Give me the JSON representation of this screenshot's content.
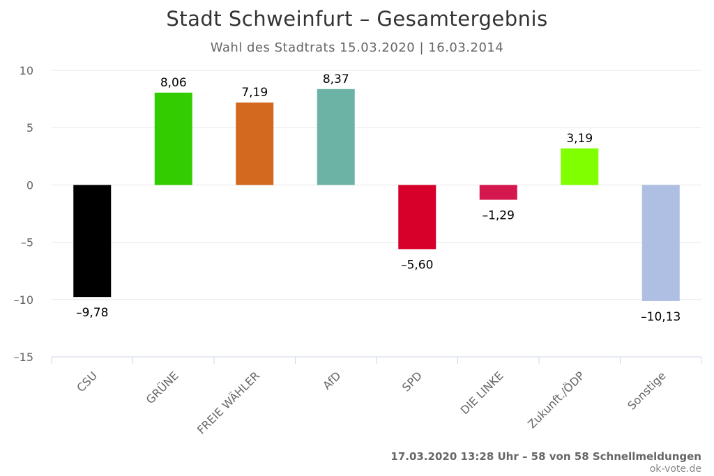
{
  "chart_data": {
    "type": "bar",
    "title": "Stadt Schweinfurt – Gesamtergebnis",
    "subtitle": "Wahl des Stadtrats 15.03.2020 | 16.03.2014",
    "categories": [
      "CSU",
      "GRÜNE",
      "FREIE WÄHLER",
      "AfD",
      "SPD",
      "DIE LINKE",
      "Zukunft./ÖDP",
      "Sonstige"
    ],
    "values": [
      -9.78,
      8.06,
      7.19,
      8.37,
      -5.6,
      -1.29,
      3.19,
      -10.13
    ],
    "data_labels": [
      "–9,78",
      "8,06",
      "7,19",
      "8,37",
      "–5,60",
      "–1,29",
      "3,19",
      "–10,13"
    ],
    "colors": [
      "#000000",
      "#33cc00",
      "#d2691e",
      "#6db3a5",
      "#d6002a",
      "#d4174d",
      "#80ff00",
      "#aebfe3"
    ],
    "ylim": [
      -15,
      10
    ],
    "y_ticks": [
      10,
      5,
      0,
      -5,
      -10,
      -15
    ],
    "y_tick_labels": [
      "10",
      "5",
      "0",
      "–5",
      "–10",
      "–15"
    ],
    "grid": true,
    "xlabel": "",
    "ylabel": ""
  },
  "footer": {
    "status": "17.03.2020 13:28 Uhr – 58 von 58 Schnellmeldungen",
    "credit": "ok-vote.de"
  }
}
